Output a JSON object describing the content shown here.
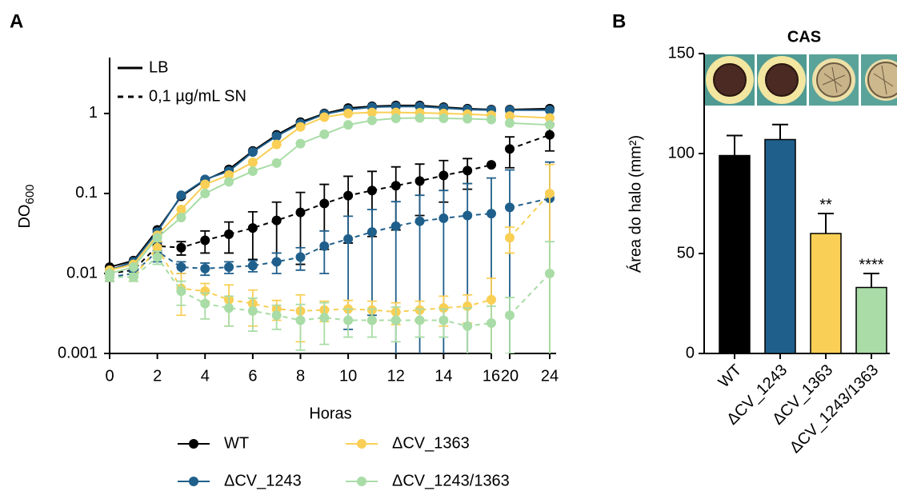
{
  "chart_data": [
    {
      "type": "line",
      "panel": "A",
      "y_label": {
        "text": "DO",
        "subscript": "600"
      },
      "x_label": "Horas",
      "log_y": true,
      "ylim": [
        0.001,
        5
      ],
      "yticks": [
        0.001,
        0.01,
        0.1,
        1
      ],
      "x_segments": [
        {
          "xlim": [
            0,
            16
          ],
          "xticks": [
            0,
            2,
            4,
            6,
            8,
            10,
            12,
            14,
            16
          ]
        },
        {
          "xlim": [
            20,
            24
          ],
          "xticks": [
            20,
            24
          ]
        }
      ],
      "x": [
        0,
        1,
        2,
        3,
        4,
        5,
        6,
        7,
        8,
        9,
        10,
        11,
        12,
        13,
        14,
        15,
        16,
        20,
        24
      ],
      "line_styles": [
        {
          "name": "LB",
          "dashed": false
        },
        {
          "name": "0,1 µg/mL SN",
          "dashed": true
        }
      ],
      "series": [
        {
          "name": "WT",
          "color": "#000000",
          "conditions": [
            {
              "values": [
                0.012,
                0.0145,
                0.035,
                0.092,
                0.147,
                0.2,
                0.34,
                0.54,
                0.78,
                1.0,
                1.17,
                1.23,
                1.26,
                1.26,
                1.2,
                1.15,
                1.12,
                1.12,
                1.15
              ]
            },
            {
              "values": [
                0.01,
                0.011,
                0.022,
                0.021,
                0.026,
                0.031,
                0.037,
                0.046,
                0.058,
                0.075,
                0.094,
                0.109,
                0.125,
                0.143,
                0.168,
                0.193,
                0.228,
                0.36,
                0.54
              ],
              "errors": [
                0.002,
                0.002,
                0.003,
                0.004,
                0.008,
                0.013,
                0.022,
                0.032,
                0.045,
                0.055,
                0.07,
                0.08,
                0.09,
                0.09,
                0.09,
                0.08,
                0,
                0.15,
                0.2
              ]
            }
          ]
        },
        {
          "name": "ΔCV_1243",
          "color": "#1f5f8b",
          "conditions": [
            {
              "values": [
                0.011,
                0.014,
                0.033,
                0.095,
                0.15,
                0.19,
                0.33,
                0.52,
                0.75,
                0.98,
                1.12,
                1.2,
                1.22,
                1.22,
                1.17,
                1.12,
                1.1,
                1.1,
                1.1
              ]
            },
            {
              "values": [
                0.009,
                0.01,
                0.019,
                0.012,
                0.0115,
                0.012,
                0.0125,
                0.014,
                0.016,
                0.022,
                0.027,
                0.033,
                0.039,
                0.045,
                0.049,
                0.053,
                0.056,
                0.067,
                0.087
              ],
              "errors": [
                0.001,
                0.001,
                0.005,
                0.002,
                0.002,
                0.002,
                0.002,
                0.004,
                0.005,
                0.012,
                0.025,
                0.03,
                0.04,
                0.05,
                0.06,
                0.08,
                0.1,
                0.13,
                0.16
              ]
            }
          ]
        },
        {
          "name": "ΔCV_1363",
          "color": "#f9cf55",
          "conditions": [
            {
              "values": [
                0.011,
                0.013,
                0.03,
                0.063,
                0.13,
                0.17,
                0.245,
                0.41,
                0.68,
                0.9,
                1.0,
                1.03,
                1.03,
                1.02,
                1.0,
                0.98,
                0.95,
                0.93,
                0.88
              ]
            },
            {
              "values": [
                0.009,
                0.009,
                0.021,
                0.0065,
                0.006,
                0.0047,
                0.0042,
                0.0036,
                0.0034,
                0.0035,
                0.0036,
                0.0035,
                0.0033,
                0.0035,
                0.0037,
                0.0039,
                0.0047,
                0.028,
                0.1
              ],
              "errors": [
                0.001,
                0.001,
                0.004,
                0.0035,
                0.0015,
                0.0025,
                0.002,
                0.001,
                0.002,
                0.001,
                0.001,
                0.001,
                0.001,
                0.001,
                0.0015,
                0.0015,
                0.004,
                0.01,
                0.13
              ]
            }
          ]
        },
        {
          "name": "ΔCV_1243/1363",
          "color": "#a9dca6",
          "conditions": [
            {
              "values": [
                0.01,
                0.012,
                0.028,
                0.05,
                0.1,
                0.14,
                0.19,
                0.24,
                0.42,
                0.55,
                0.72,
                0.82,
                0.87,
                0.88,
                0.87,
                0.86,
                0.84,
                0.76,
                0.72
              ]
            },
            {
              "values": [
                0.009,
                0.009,
                0.016,
                0.006,
                0.0042,
                0.0037,
                0.0034,
                0.003,
                0.0026,
                0.0028,
                0.0026,
                0.0026,
                0.0026,
                0.0026,
                0.0026,
                0.0022,
                0.0024,
                0.003,
                0.01
              ],
              "errors": [
                0.001,
                0.001,
                0.003,
                0.002,
                0.0015,
                0.0015,
                0.0015,
                0.001,
                0.0015,
                0.0015,
                0.001,
                0.001,
                0.0012,
                0.001,
                0.001,
                0.0015,
                0.0015,
                0.002,
                0.015
              ]
            }
          ]
        }
      ]
    },
    {
      "type": "bar",
      "panel": "B",
      "title": "CAS",
      "y_label": "Área do halo (mm²)",
      "ylim": [
        0,
        150
      ],
      "yticks": [
        0,
        50,
        100,
        150
      ],
      "categories": [
        "WT",
        "ΔCV_1243",
        "ΔCV_1363",
        "ΔCV_1243/1363"
      ],
      "values": [
        99,
        107,
        60,
        33
      ],
      "errors": [
        10,
        7.5,
        10,
        7
      ],
      "colors": [
        "#000000",
        "#1f5f8b",
        "#f9cf55",
        "#a9dca6"
      ],
      "annotations": [
        null,
        null,
        "**",
        "****"
      ]
    }
  ]
}
